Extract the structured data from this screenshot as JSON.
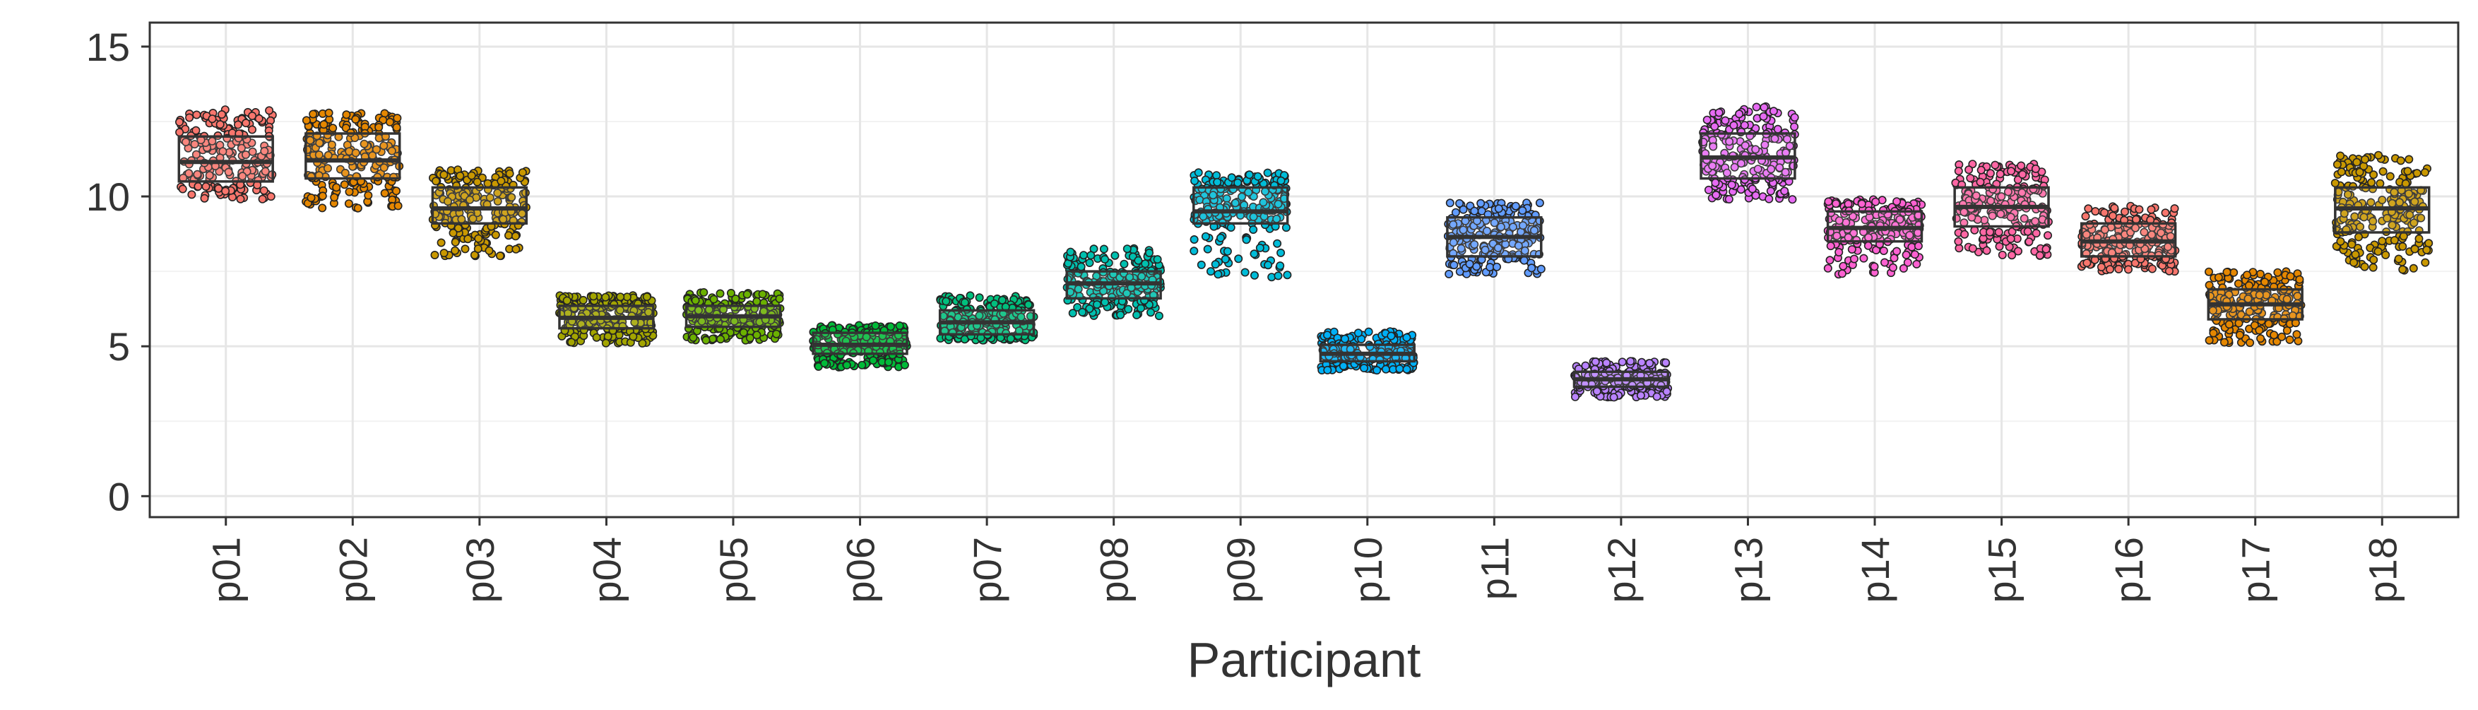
{
  "chart_data": {
    "type": "box",
    "xlabel": "Participant",
    "ylabel": "",
    "ylim": [
      -0.7,
      15.8
    ],
    "yticks": [
      0,
      5,
      10,
      15
    ],
    "grid": true,
    "legend": "none",
    "categories": [
      "p01",
      "p02",
      "p03",
      "p04",
      "p05",
      "p06",
      "p07",
      "p08",
      "p09",
      "p10",
      "p11",
      "p12",
      "p13",
      "p14",
      "p15",
      "p16",
      "p17",
      "p18"
    ],
    "boxes": [
      {
        "q1": 10.5,
        "median": 11.15,
        "q3": 12.0,
        "min": 9.9,
        "max": 12.9
      },
      {
        "q1": 10.6,
        "median": 11.2,
        "q3": 12.1,
        "min": 9.6,
        "max": 12.8
      },
      {
        "q1": 9.1,
        "median": 9.6,
        "q3": 10.3,
        "min": 8.0,
        "max": 10.9
      },
      {
        "q1": 5.6,
        "median": 5.95,
        "q3": 6.35,
        "min": 5.1,
        "max": 6.7
      },
      {
        "q1": 5.65,
        "median": 6.0,
        "q3": 6.35,
        "min": 5.2,
        "max": 6.8
      },
      {
        "q1": 4.75,
        "median": 5.05,
        "q3": 5.45,
        "min": 4.3,
        "max": 5.7
      },
      {
        "q1": 5.4,
        "median": 5.8,
        "q3": 6.2,
        "min": 5.2,
        "max": 6.7
      },
      {
        "q1": 6.6,
        "median": 7.1,
        "q3": 7.5,
        "min": 6.0,
        "max": 8.3
      },
      {
        "q1": 9.1,
        "median": 9.5,
        "q3": 10.3,
        "min": 7.3,
        "max": 10.8
      },
      {
        "q1": 4.5,
        "median": 4.75,
        "q3": 5.05,
        "min": 4.2,
        "max": 5.5
      },
      {
        "q1": 8.0,
        "median": 8.65,
        "q3": 9.3,
        "min": 7.4,
        "max": 9.8
      },
      {
        "q1": 3.65,
        "median": 3.9,
        "q3": 4.15,
        "min": 3.3,
        "max": 4.5
      },
      {
        "q1": 10.6,
        "median": 11.3,
        "q3": 12.1,
        "min": 9.9,
        "max": 13.0
      },
      {
        "q1": 8.5,
        "median": 8.95,
        "q3": 9.5,
        "min": 7.4,
        "max": 9.9
      },
      {
        "q1": 9.0,
        "median": 9.65,
        "q3": 10.3,
        "min": 8.0,
        "max": 11.1
      },
      {
        "q1": 8.0,
        "median": 8.5,
        "q3": 9.1,
        "min": 7.5,
        "max": 9.7
      },
      {
        "q1": 5.9,
        "median": 6.4,
        "q3": 6.9,
        "min": 5.1,
        "max": 7.5
      },
      {
        "q1": 8.8,
        "median": 9.6,
        "q3": 10.3,
        "min": 7.5,
        "max": 11.4
      }
    ],
    "point_colors": [
      "#F8766D",
      "#E58700",
      "#C99800",
      "#A3A500",
      "#6BB100",
      "#00BA38",
      "#00BF7D",
      "#00C0AF",
      "#00BCD8",
      "#00B0F6",
      "#619CFF",
      "#B983FF",
      "#E76BF3",
      "#FD61D1",
      "#FF67A4",
      "#F8766D",
      "#E58700",
      "#C99800"
    ]
  }
}
